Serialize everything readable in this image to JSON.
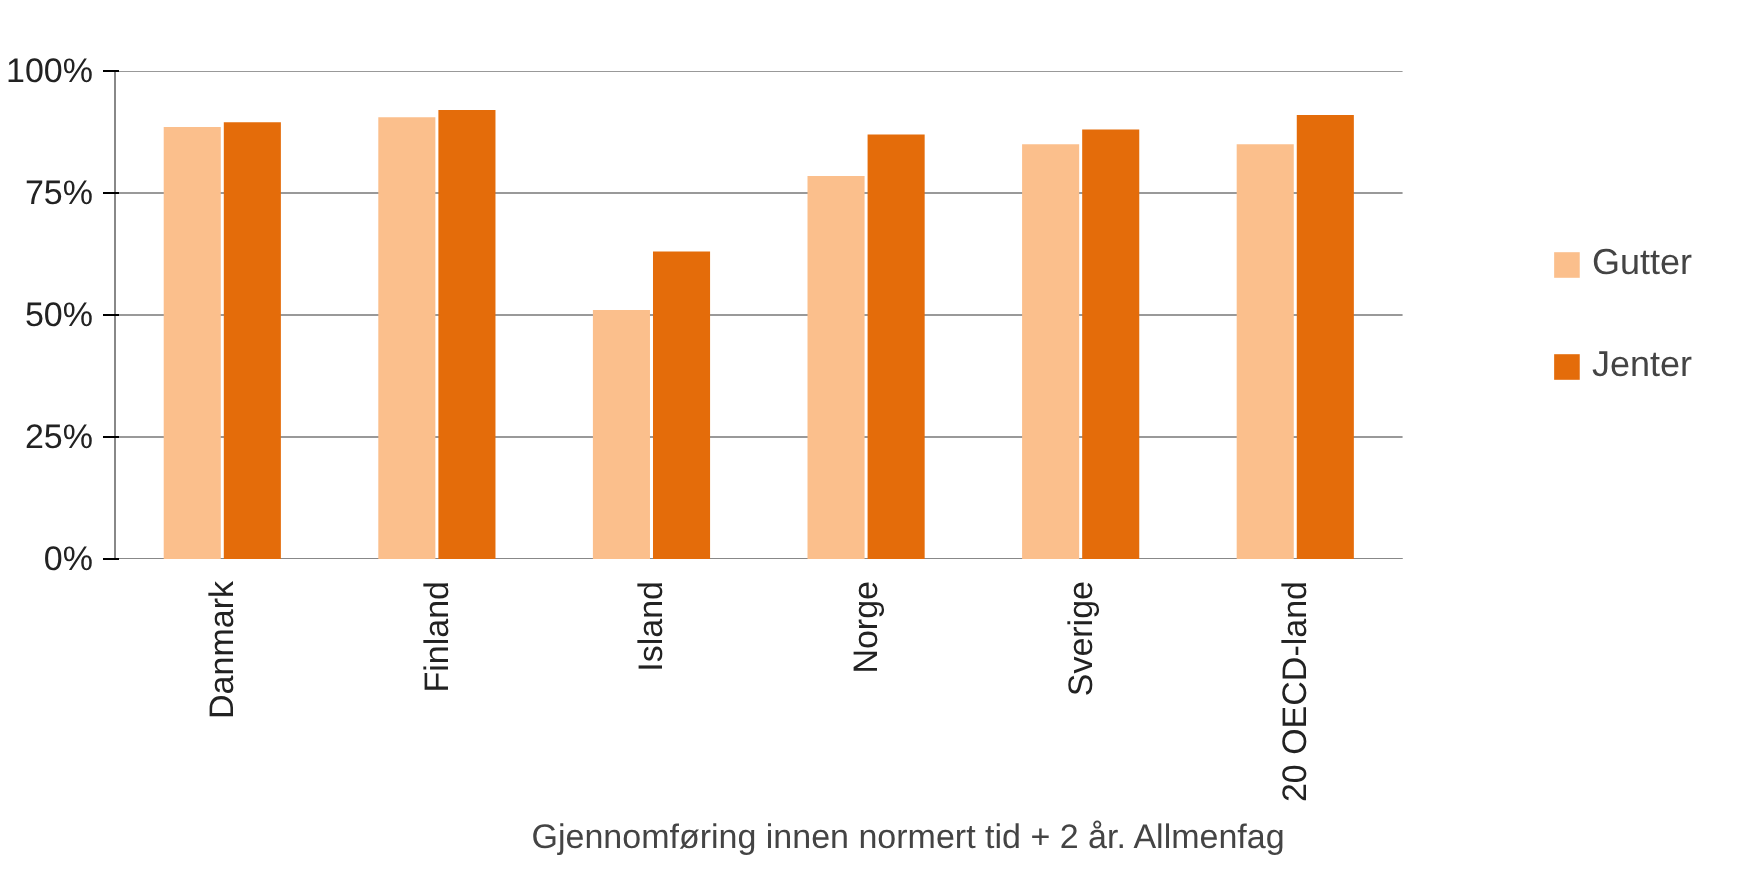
{
  "chart_data": {
    "type": "bar",
    "xlabel": "Gjennomføring innen normert tid + 2 år. Allmenfag",
    "categories": [
      "Danmark",
      "Finland",
      "Island",
      "Norge",
      "Sverige",
      "20 OECD-land"
    ],
    "series": [
      {
        "name": "Gutter",
        "color": "#fbbf8c",
        "values": [
          88.5,
          90.5,
          51,
          78.5,
          85,
          85
        ]
      },
      {
        "name": "Jenter",
        "color": "#e46c0a",
        "values": [
          89.5,
          92,
          63,
          87,
          88,
          91
        ]
      }
    ],
    "ylim": [
      0,
      100
    ],
    "yticks": [
      {
        "value": 0,
        "label": "0%"
      },
      {
        "value": 25,
        "label": "25%"
      },
      {
        "value": 50,
        "label": "50%"
      },
      {
        "value": 75,
        "label": "75%"
      },
      {
        "value": 100,
        "label": "100%"
      }
    ],
    "grid": "y",
    "legend": "right"
  }
}
